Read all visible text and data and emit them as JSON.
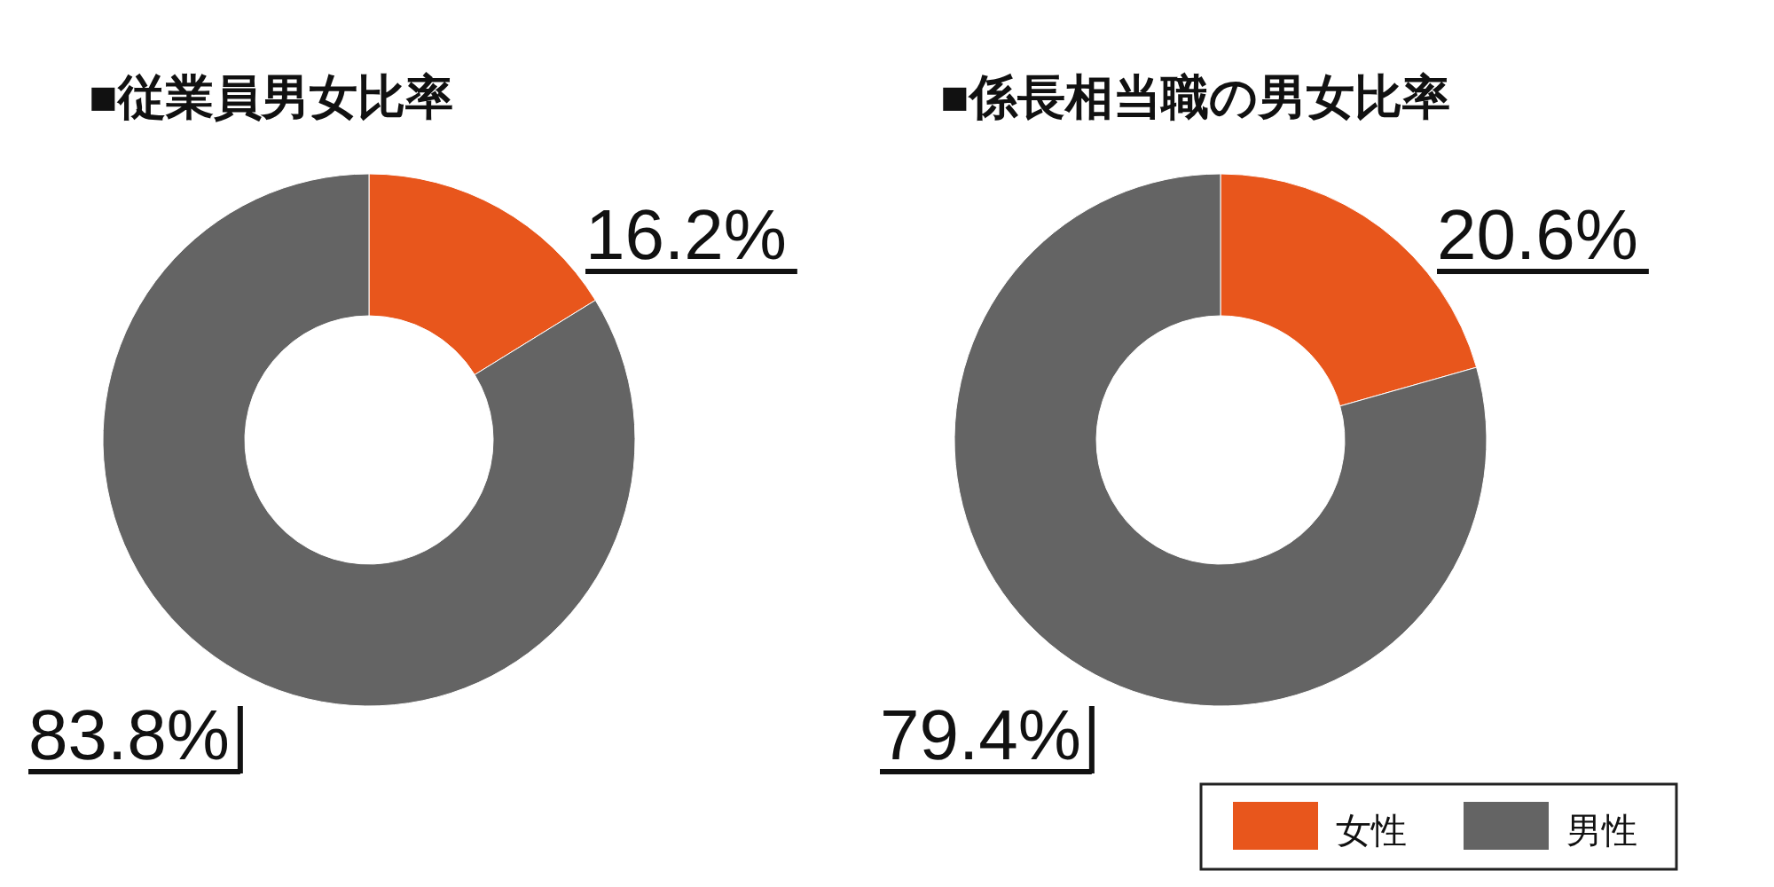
{
  "chart_data": [
    {
      "type": "donut",
      "title": "■従業員男女比率",
      "categories": [
        null,
        null
      ],
      "values": [
        16.2,
        83.8
      ],
      "colors": [
        "#e8561c",
        "#646464"
      ],
      "value_labels": [
        "16.2%",
        "83.8%"
      ],
      "legend": false
    },
    {
      "type": "donut",
      "title": "■係長相当職の男女比率",
      "categories": [
        "女性",
        "男性"
      ],
      "values": [
        20.6,
        79.4
      ],
      "colors": [
        "#e8561c",
        "#646464"
      ],
      "value_labels": [
        "20.6%",
        "79.4%"
      ],
      "legend": "bottom right"
    }
  ]
}
